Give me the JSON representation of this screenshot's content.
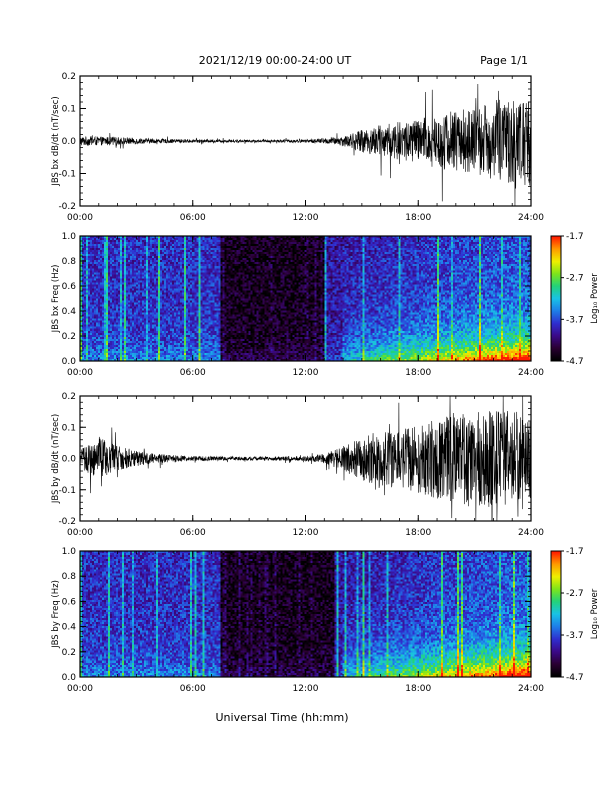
{
  "header": {
    "title": "2021/12/19  00:00-24:00 UT",
    "page": "Page 1/1"
  },
  "footer": {
    "xlabel": "Universal Time (hh:mm)"
  },
  "colors": {
    "trace": "#000000",
    "colormap": [
      "#000000",
      "#2a0033",
      "#3b0a8a",
      "#2f2fd0",
      "#1e7fe8",
      "#19c3e6",
      "#23d27a",
      "#7ee51a",
      "#f0f000",
      "#ff9a00",
      "#ff1a00"
    ]
  },
  "chart_data": [
    {
      "type": "line",
      "ylabel": "JBS bx dB/dt (nT/sec)",
      "ylim": [
        -0.2,
        0.2
      ],
      "xlim_hours": [
        0,
        24
      ],
      "x_ticks": [
        "00:00",
        "06:00",
        "12:00",
        "18:00",
        "24:00"
      ],
      "y_ticks": [
        "0.2",
        "0.1",
        "0.0",
        "-0.1",
        "-0.2"
      ],
      "envelope": {
        "hours": [
          0,
          2,
          4,
          6,
          8,
          10,
          12,
          13,
          14,
          15,
          16,
          17,
          18,
          19,
          20,
          21,
          22,
          23,
          24
        ],
        "amplitude": [
          0.015,
          0.012,
          0.007,
          0.005,
          0.004,
          0.004,
          0.005,
          0.008,
          0.015,
          0.035,
          0.05,
          0.06,
          0.07,
          0.08,
          0.1,
          0.1,
          0.12,
          0.13,
          0.14
        ]
      }
    },
    {
      "type": "heatmap",
      "ylabel": "JBS bx Freq (Hz)",
      "ylim": [
        0.0,
        1.0
      ],
      "xlim_hours": [
        0,
        24
      ],
      "x_ticks": [
        "00:00",
        "06:00",
        "12:00",
        "18:00",
        "24:00"
      ],
      "y_ticks": [
        "1.0",
        "0.8",
        "0.6",
        "0.4",
        "0.2",
        "0.0"
      ],
      "colorbar": {
        "label": "Log₁₀ Power",
        "ticks": [
          "-1.7",
          "-2.7",
          "-3.7",
          "-4.7"
        ],
        "range": [
          -4.7,
          -1.7
        ]
      },
      "quiet_band_hours": [
        7.5,
        13.0
      ]
    },
    {
      "type": "line",
      "ylabel": "JBS by dB/dt (nT/sec)",
      "ylim": [
        -0.2,
        0.2
      ],
      "xlim_hours": [
        0,
        24
      ],
      "x_ticks": [
        "00:00",
        "06:00",
        "12:00",
        "18:00",
        "24:00"
      ],
      "y_ticks": [
        "0.2",
        "0.1",
        "0.0",
        "-0.1",
        "-0.2"
      ],
      "envelope": {
        "hours": [
          0,
          1,
          2,
          3,
          4,
          6,
          8,
          10,
          12,
          13,
          14,
          15,
          16,
          17,
          18,
          19,
          20,
          21,
          22,
          23,
          24
        ],
        "amplitude": [
          0.03,
          0.07,
          0.04,
          0.025,
          0.015,
          0.008,
          0.006,
          0.006,
          0.008,
          0.015,
          0.04,
          0.07,
          0.09,
          0.1,
          0.11,
          0.13,
          0.14,
          0.16,
          0.16,
          0.15,
          0.15
        ]
      }
    },
    {
      "type": "heatmap",
      "ylabel": "JBS by Freq (Hz)",
      "ylim": [
        0.0,
        1.0
      ],
      "xlim_hours": [
        0,
        24
      ],
      "x_ticks": [
        "00:00",
        "06:00",
        "12:00",
        "18:00",
        "24:00"
      ],
      "y_ticks": [
        "1.0",
        "0.8",
        "0.6",
        "0.4",
        "0.2",
        "0.0"
      ],
      "colorbar": {
        "label": "Log₁₀ Power",
        "ticks": [
          "-1.7",
          "-2.7",
          "-3.7",
          "-4.7"
        ],
        "range": [
          -4.7,
          -1.7
        ]
      },
      "quiet_band_hours": [
        7.5,
        13.5
      ]
    }
  ]
}
